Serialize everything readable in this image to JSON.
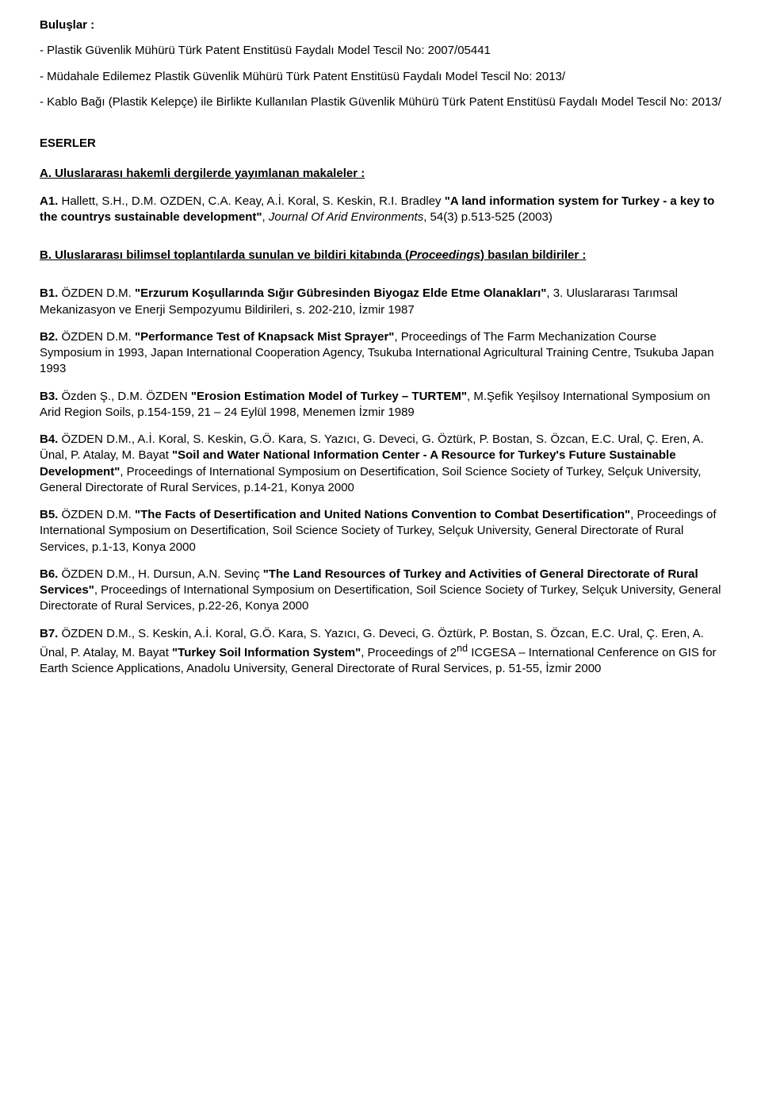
{
  "bulus": {
    "title": "Buluşlar :",
    "items": [
      "- Plastik Güvenlik Mühürü Türk Patent Enstitüsü Faydalı Model Tescil No: 2007/05441",
      "- Müdahale Edilemez Plastik Güvenlik Mühürü Türk Patent Enstitüsü Faydalı Model Tescil No: 2013/",
      "- Kablo Bağı (Plastik Kelepçe) ile Birlikte Kullanılan Plastik Güvenlik Mühürü Türk Patent Enstitüsü Faydalı Model Tescil No: 2013/"
    ]
  },
  "eserler_title": "ESERLER",
  "sectionA": {
    "heading": "A. Uluslararası hakemli dergilerde yayımlanan makaleler :",
    "entry": {
      "code": "A1.",
      "pre": " Hallett, S.H., D.M. OZDEN, C.A. Keay, A.İ. Koral, S. Keskin, R.I. Bradley ",
      "bold": "\"A land information system for Turkey - a key to the countrys sustainable development\"",
      "post_italic_before": ", ",
      "italic": "Journal Of Arid Environments",
      "post": ", 54(3) p.513-525 (2003)"
    }
  },
  "sectionB": {
    "heading_u1": "B. Uluslararası bilimsel toplantılarda sunulan ve bildiri kitabında (",
    "heading_i": "Proceedings",
    "heading_u2": ") basılan bildiriler :",
    "entries": [
      {
        "code": "B1.",
        "pre": " ÖZDEN D.M. ",
        "bold": "\"Erzurum Koşullarında Sığır Gübresinden Biyogaz Elde Etme Olanakları\"",
        "post": ", 3. Uluslararası Tarımsal Mekanizasyon ve Enerji Sempozyumu Bildirileri, s. 202-210, İzmir 1987"
      },
      {
        "code": "B2.",
        "pre": " ÖZDEN D.M. ",
        "bold": "\"Performance Test of Knapsack Mist Sprayer\"",
        "post": ", Proceedings of The Farm Mechanization Course Symposium in 1993, Japan International Cooperation Agency, Tsukuba International Agricultural Training Centre, Tsukuba Japan 1993"
      },
      {
        "code": "B3.",
        "pre": " Özden Ş., D.M. ÖZDEN ",
        "bold": "\"Erosion Estimation Model of Turkey – TURTEM\"",
        "post": ", M.Şefik Yeşilsoy International Symposium on Arid Region Soils, p.154-159, 21 – 24 Eylül 1998, Menemen İzmir 1989"
      },
      {
        "code": "B4.",
        "pre": " ÖZDEN D.M., A.İ. Koral, S. Keskin, G.Ö. Kara, S. Yazıcı, G. Deveci, G. Öztürk, P. Bostan, S. Özcan, E.C. Ural, Ç. Eren, A. Ünal, P. Atalay, M. Bayat ",
        "bold": "\"Soil and Water National Information Center - A Resource for Turkey's Future Sustainable Development\"",
        "post": ", Proceedings of International Symposium on Desertification, Soil Science Society of Turkey, Selçuk University, General Directorate of Rural Services, p.14-21, Konya 2000"
      },
      {
        "code": "B5.",
        "pre": " ÖZDEN D.M. ",
        "bold": "\"The Facts of Desertification and United Nations Convention to Combat Desertification\"",
        "post": ", Proceedings of International Symposium on Desertification, Soil Science Society of Turkey, Selçuk University, General Directorate of Rural Services, p.1-13, Konya 2000"
      },
      {
        "code": "B6.",
        "pre": " ÖZDEN D.M., H. Dursun, A.N. Sevinç ",
        "bold": "\"The Land Resources of Turkey and Activities of General Directorate of Rural Services\"",
        "post": ", Proceedings of International Symposium on Desertification, Soil Science Society of Turkey, Selçuk University, General Directorate of Rural Services, p.22-26, Konya 2000"
      },
      {
        "code": "B7.",
        "pre": " ÖZDEN D.M., S. Keskin, A.İ. Koral, G.Ö. Kara, S. Yazıcı, G. Deveci, G. Öztürk, P. Bostan, S. Özcan, E.C. Ural, Ç. Eren, A. Ünal, P. Atalay, M. Bayat ",
        "bold": "\"Turkey Soil Information System\"",
        "post_pre_sup": ", Proceedings of 2",
        "sup": "nd",
        "post_after_sup": " ICGESA – International Cenference on GIS for Earth Science Applications, Anadolu University, General Directorate of Rural Services, p. 51-55, İzmir 2000"
      }
    ]
  }
}
